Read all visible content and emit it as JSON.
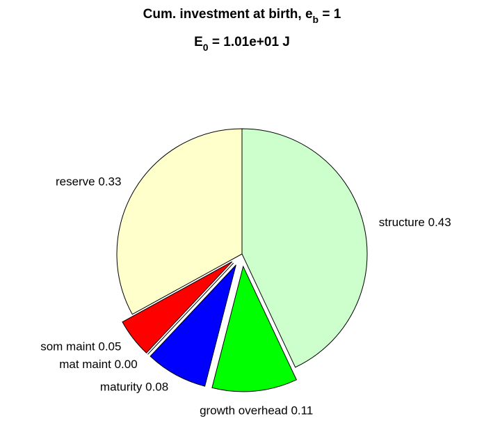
{
  "chart_data": {
    "type": "pie",
    "title": {
      "main": "Cum. investment at birth, e",
      "subscript": "b",
      "end": " = 1"
    },
    "subtitle": {
      "main": "E",
      "subscript": "0",
      "end": " = 1.01e+01 J"
    },
    "categories": [
      "structure",
      "growth overhead",
      "maturity",
      "mat maint",
      "som maint",
      "reserve"
    ],
    "values": [
      0.43,
      0.11,
      0.08,
      0,
      0.05,
      0.33
    ],
    "value_labels": [
      "0.43",
      "0.11",
      "0.08",
      "0.00",
      "0.05",
      "0.33"
    ],
    "colors": [
      "#ccffcc",
      "#00ff00",
      "#0000ff",
      "#ff00ff",
      "#ff0000",
      "#ffffcc"
    ],
    "explode": [
      false,
      true,
      true,
      true,
      true,
      false
    ]
  }
}
